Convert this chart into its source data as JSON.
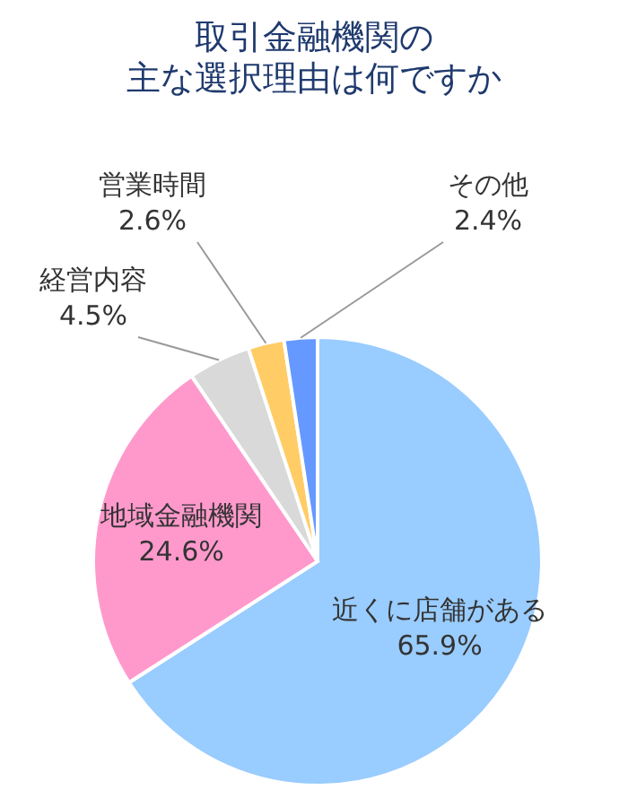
{
  "chart_data": {
    "type": "pie",
    "title": "取引金融機関の",
    "subtitle": "主な選択理由は何ですか",
    "categories": [
      "近くに店舗がある",
      "地域金融機関",
      "経営内容",
      "営業時間",
      "その他"
    ],
    "values": [
      65.9,
      24.6,
      4.5,
      2.6,
      2.4
    ],
    "value_labels": [
      "65.9%",
      "24.6%",
      "4.5%",
      "2.6%",
      "2.4%"
    ],
    "colors": [
      "#99ccff",
      "#ff99cc",
      "#d9d9d9",
      "#ffcc66",
      "#6699ff"
    ],
    "legend": false
  }
}
